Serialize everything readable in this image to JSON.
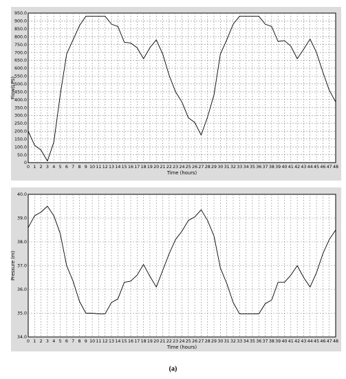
{
  "caption": "(a)",
  "chart_data": [
    {
      "type": "line",
      "xlabel": "Time (hours)",
      "ylabel": "Flow(LPS)",
      "xlim": [
        0,
        48
      ],
      "ylim": [
        0,
        950
      ],
      "x_ticks": [
        0,
        1,
        2,
        3,
        4,
        5,
        6,
        7,
        8,
        9,
        10,
        11,
        12,
        13,
        14,
        15,
        16,
        17,
        18,
        19,
        20,
        21,
        22,
        23,
        24,
        25,
        26,
        27,
        28,
        29,
        30,
        31,
        32,
        33,
        34,
        35,
        36,
        37,
        38,
        39,
        40,
        41,
        42,
        43,
        44,
        45,
        46,
        47,
        48
      ],
      "y_ticks": [
        "0",
        "50.0",
        "100.0",
        "150.0",
        "200.0",
        "250.0",
        "300.0",
        "350.0",
        "400.0",
        "450.0",
        "500.0",
        "550.0",
        "600.0",
        "650.0",
        "700.0",
        "750.0",
        "800.0",
        "850.0",
        "900.0",
        "950.0"
      ],
      "grid": true,
      "series": [
        {
          "x": [
            0,
            1,
            2,
            3,
            4,
            5,
            6,
            7,
            8,
            9,
            10,
            11,
            12,
            13,
            14,
            15,
            16,
            17,
            18,
            19,
            20,
            21,
            22,
            23,
            24,
            25,
            26,
            27,
            28,
            29,
            30,
            31,
            32,
            33,
            34,
            35,
            36,
            37,
            38,
            39,
            40,
            41,
            42,
            43,
            44,
            45,
            46,
            47,
            48
          ],
          "values": [
            200,
            110,
            80,
            10,
            130,
            430,
            690,
            780,
            870,
            930,
            930,
            930,
            930,
            880,
            865,
            765,
            760,
            730,
            660,
            730,
            780,
            690,
            555,
            450,
            385,
            285,
            255,
            175,
            290,
            430,
            690,
            780,
            880,
            930,
            930,
            930,
            930,
            880,
            865,
            770,
            775,
            740,
            660,
            720,
            785,
            700,
            575,
            460,
            385
          ]
        }
      ]
    },
    {
      "type": "line",
      "xlabel": "Time (hours)",
      "ylabel": "Pressure (m)",
      "xlim": [
        0,
        48
      ],
      "ylim": [
        34.0,
        40.0
      ],
      "x_ticks": [
        0,
        1,
        2,
        3,
        4,
        5,
        6,
        7,
        8,
        9,
        10,
        11,
        12,
        13,
        14,
        15,
        16,
        17,
        18,
        19,
        20,
        21,
        22,
        23,
        24,
        25,
        26,
        27,
        28,
        29,
        30,
        31,
        32,
        33,
        34,
        35,
        36,
        37,
        38,
        39,
        40,
        41,
        42,
        43,
        44,
        45,
        46,
        47,
        48
      ],
      "y_ticks": [
        "34.0",
        "35.0",
        "36.0",
        "37.0",
        "38.0",
        "39.0",
        "40.0"
      ],
      "grid": true,
      "series": [
        {
          "x": [
            0,
            1,
            2,
            3,
            4,
            5,
            6,
            7,
            8,
            9,
            10,
            11,
            12,
            13,
            14,
            15,
            16,
            17,
            18,
            19,
            20,
            21,
            22,
            23,
            24,
            25,
            26,
            27,
            28,
            29,
            30,
            31,
            32,
            33,
            34,
            35,
            36,
            37,
            38,
            39,
            40,
            41,
            42,
            43,
            44,
            45,
            46,
            47,
            48
          ],
          "values": [
            38.6,
            39.1,
            39.25,
            39.5,
            39.1,
            38.35,
            37.0,
            36.35,
            35.5,
            35.0,
            35.0,
            34.97,
            34.97,
            35.45,
            35.6,
            36.3,
            36.35,
            36.6,
            37.05,
            36.55,
            36.1,
            36.8,
            37.5,
            38.1,
            38.45,
            38.9,
            39.05,
            39.35,
            38.9,
            38.25,
            36.9,
            36.25,
            35.45,
            34.97,
            34.97,
            34.97,
            34.97,
            35.4,
            35.55,
            36.3,
            36.3,
            36.6,
            37.0,
            36.5,
            36.1,
            36.7,
            37.5,
            38.1,
            38.5
          ]
        }
      ]
    }
  ]
}
